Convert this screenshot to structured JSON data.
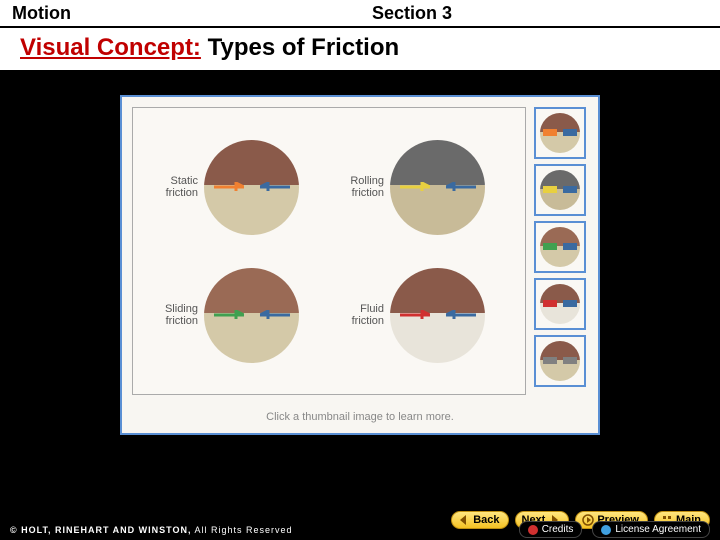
{
  "header": {
    "left": "Motion",
    "right": "Section 3"
  },
  "title": {
    "prefix": "Visual Concept:",
    "suffix": " Types of Friction"
  },
  "panel": {
    "footer_text": "Click a thumbnail image to learn more.",
    "cells": [
      {
        "label": "Static friction",
        "top_color": "#8a5a4a",
        "bot_color": "#d4c9a8",
        "arrow1_color": "#f08030",
        "arrow2_color": "#3a6aa0"
      },
      {
        "label": "Rolling friction",
        "top_color": "#6a6a6a",
        "bot_color": "#c8bb98",
        "arrow1_color": "#e8d040",
        "arrow2_color": "#3a6aa0"
      },
      {
        "label": "Sliding friction",
        "top_color": "#9a6a55",
        "bot_color": "#d4c9a8",
        "arrow1_color": "#40a050",
        "arrow2_color": "#3a6aa0"
      },
      {
        "label": "Fluid friction",
        "top_color": "#8a5a4a",
        "bot_color": "#e8e4da",
        "arrow1_color": "#d03030",
        "arrow2_color": "#3a6aa0"
      }
    ],
    "thumbs": [
      {
        "top_color": "#8a5a4a",
        "bot_color": "#d4c9a8",
        "a1": "#f08030",
        "a2": "#3a6aa0"
      },
      {
        "top_color": "#6a6a6a",
        "bot_color": "#c8bb98",
        "a1": "#e8d040",
        "a2": "#3a6aa0"
      },
      {
        "top_color": "#9a6a55",
        "bot_color": "#d4c9a8",
        "a1": "#40a050",
        "a2": "#3a6aa0"
      },
      {
        "top_color": "#8a5a4a",
        "bot_color": "#e8e4da",
        "a1": "#d03030",
        "a2": "#3a6aa0"
      },
      {
        "top_color": "#8a5a4a",
        "bot_color": "#d4c9a8",
        "a1": "#808080",
        "a2": "#808080"
      }
    ]
  },
  "nav": {
    "back": "Back",
    "next": "Next",
    "preview": "Preview",
    "main": "Main",
    "credits": "Credits",
    "license": "License Agreement"
  },
  "copyright": {
    "brand": "© HOLT, RINEHART AND WINSTON,",
    "rest": " All Rights Reserved"
  },
  "colors": {
    "credit_dot": "#d03030",
    "license_dot": "#40a0e0"
  }
}
